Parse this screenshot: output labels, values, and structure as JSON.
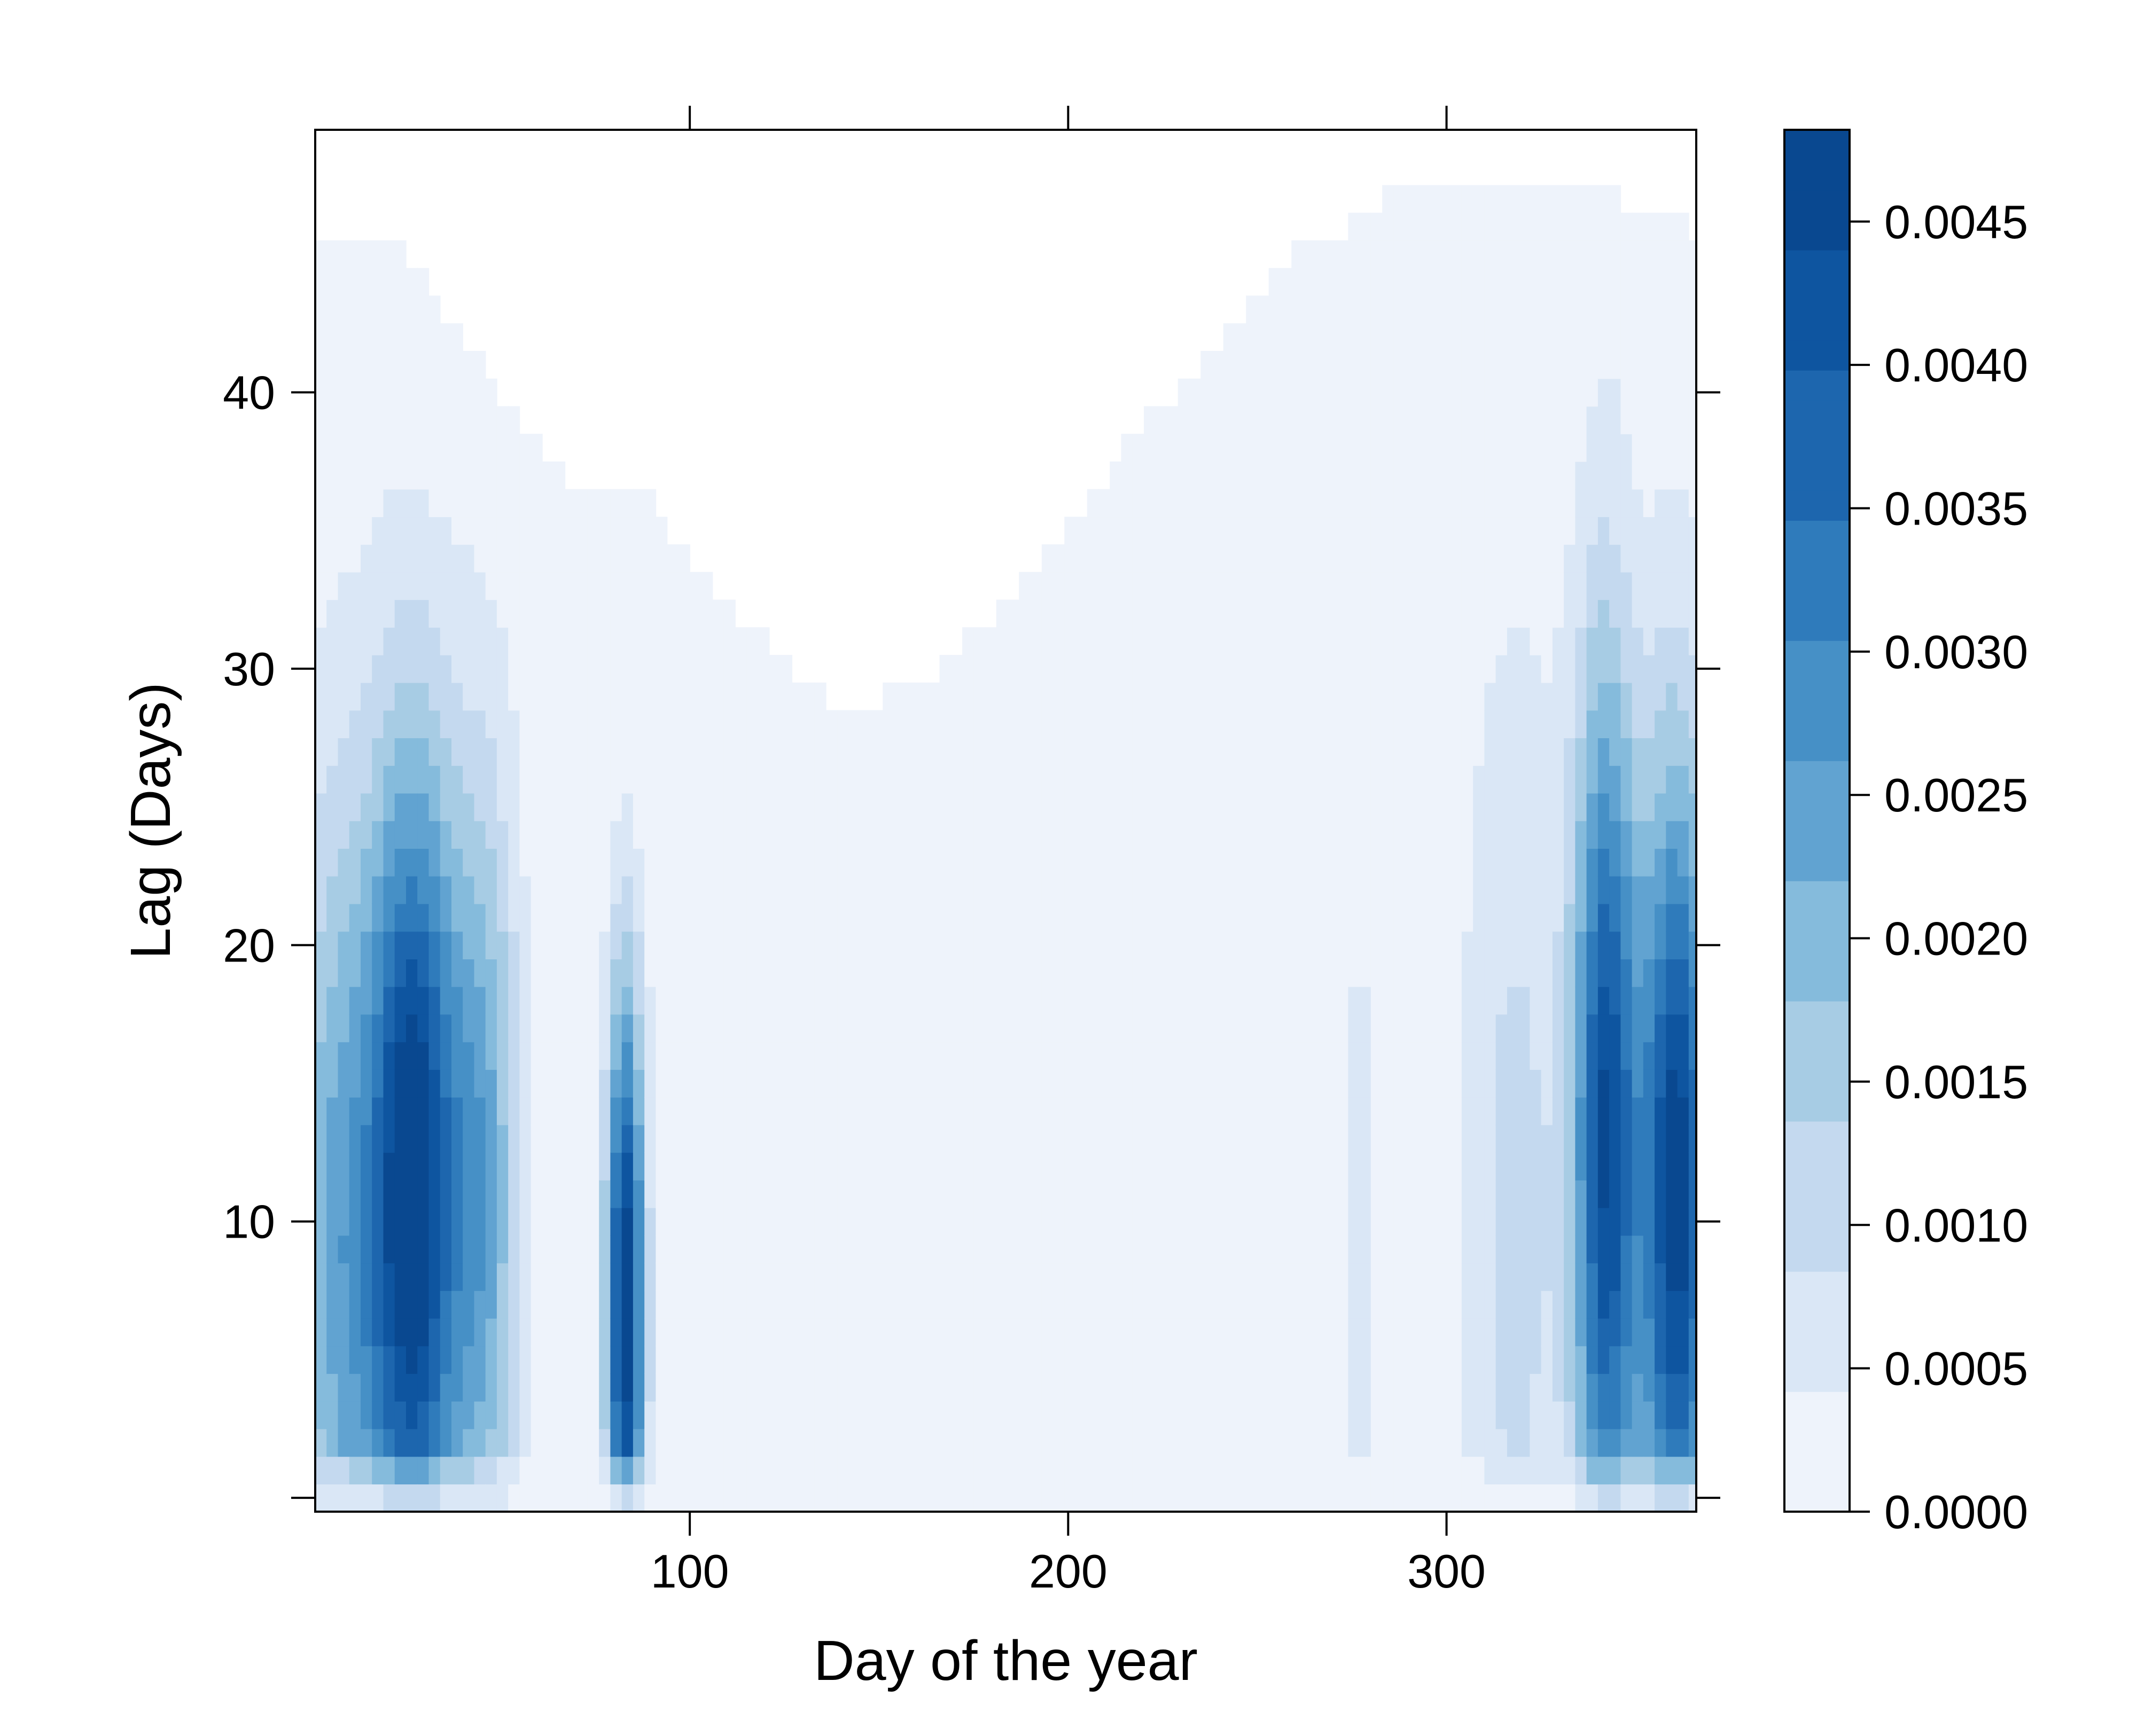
{
  "chart_data": {
    "type": "heatmap",
    "title": "",
    "xlabel": "Day of the year",
    "ylabel": "Lag (Days)",
    "xlim": [
      1,
      366
    ],
    "ylim": [
      -0.5,
      49.5
    ],
    "x_ticks": [
      100,
      200,
      300
    ],
    "x_tick_labels": [
      "100",
      "200",
      "300"
    ],
    "y_ticks": [
      0,
      10,
      20,
      30,
      40
    ],
    "y_tick_labels": [
      "",
      "10",
      "20",
      "30",
      "40"
    ],
    "colorbar": {
      "range": [
        0.0,
        0.00482
      ],
      "ticks": [
        0.0,
        0.0005,
        0.001,
        0.0015,
        0.002,
        0.0025,
        0.003,
        0.0035,
        0.004,
        0.0045
      ],
      "tick_labels": [
        "0.0000",
        "0.0005",
        "0.0010",
        "0.0015",
        "0.0020",
        "0.0025",
        "0.0030",
        "0.0035",
        "0.0040",
        "0.0045"
      ],
      "colors": [
        "#eef3fb",
        "#dae7f6",
        "#c4d9ef",
        "#a7cce4",
        "#85bbdc",
        "#61a3d1",
        "#4690c6",
        "#2f7bbb",
        "#1d66ae",
        "#0e55a0",
        "#094890"
      ]
    },
    "lag_envelope": {
      "days": [
        1,
        20,
        25,
        30,
        35,
        40,
        45,
        50,
        55,
        60,
        68,
        90,
        95,
        100,
        105,
        112,
        120,
        128,
        135,
        152,
        165,
        173,
        180,
        187,
        193,
        200,
        205,
        210,
        215,
        220,
        228,
        234,
        240,
        246,
        252,
        258,
        264,
        274,
        283,
        295,
        310,
        320,
        340,
        345,
        355,
        363,
        366
      ],
      "max_lag": [
        45,
        45,
        44,
        43,
        42,
        41,
        40,
        39,
        38,
        37,
        36,
        35,
        34,
        33,
        32,
        31,
        30,
        29,
        28,
        29,
        30,
        31,
        32,
        33,
        34,
        35,
        36,
        37,
        38,
        39,
        40,
        41,
        42,
        43,
        44,
        45,
        45,
        46,
        47,
        47,
        47,
        47,
        47,
        46,
        46,
        45,
        45
      ]
    },
    "high_density_bands": [
      {
        "day": 8,
        "peak": 0.0022,
        "width_days": 10,
        "peak_lag": 9,
        "lag_spread": 12
      },
      {
        "day": 27,
        "peak": 0.0046,
        "width_days": 8,
        "peak_lag": 11,
        "lag_spread": 11
      },
      {
        "day": 45,
        "peak": 0.0022,
        "width_days": 7,
        "peak_lag": 11,
        "lag_spread": 11
      },
      {
        "day": 83,
        "peak": 0.0048,
        "width_days": 3.5,
        "peak_lag": 7,
        "lag_spread": 8
      },
      {
        "day": 277,
        "peak": 0.0004,
        "width_days": 6,
        "peak_lag": 10,
        "lag_spread": 14
      },
      {
        "day": 318,
        "peak": 0.0009,
        "width_days": 10,
        "peak_lag": 10,
        "lag_spread": 15
      },
      {
        "day": 342,
        "peak": 0.0042,
        "width_days": 6,
        "peak_lag": 13,
        "lag_spread": 12
      },
      {
        "day": 361,
        "peak": 0.0046,
        "width_days": 7,
        "peak_lag": 11,
        "lag_spread": 11
      }
    ]
  }
}
